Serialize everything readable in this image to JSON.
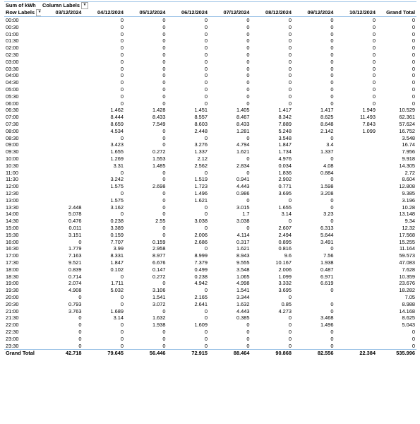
{
  "pivot": {
    "value_field": "Sum of kWh",
    "column_labels": "Column Labels",
    "row_labels": "Row Labels",
    "dropdown_glyph": "▾",
    "columns": [
      "03/12/2024",
      "04/12/2024",
      "05/12/2024",
      "06/12/2024",
      "07/12/2024",
      "08/12/2024",
      "09/12/2024",
      "10/12/2024",
      "Grand Total"
    ],
    "rows": [
      [
        "00:00",
        "",
        "0",
        "0",
        "0",
        "0",
        "0",
        "0",
        "0",
        "0"
      ],
      [
        "00:30",
        "",
        "0",
        "0",
        "0",
        "0",
        "0",
        "0",
        "0",
        "0"
      ],
      [
        "01:00",
        "",
        "0",
        "0",
        "0",
        "0",
        "0",
        "0",
        "0",
        "0"
      ],
      [
        "01:30",
        "",
        "0",
        "0",
        "0",
        "0",
        "0",
        "0",
        "0",
        "0"
      ],
      [
        "02:00",
        "",
        "0",
        "0",
        "0",
        "0",
        "0",
        "0",
        "0",
        "0"
      ],
      [
        "02:30",
        "",
        "0",
        "0",
        "0",
        "0",
        "0",
        "0",
        "0",
        "0"
      ],
      [
        "03:00",
        "",
        "0",
        "0",
        "0",
        "0",
        "0",
        "0",
        "0",
        "0"
      ],
      [
        "03:30",
        "",
        "0",
        "0",
        "0",
        "0",
        "0",
        "0",
        "0",
        "0"
      ],
      [
        "04:00",
        "",
        "0",
        "0",
        "0",
        "0",
        "0",
        "0",
        "0",
        "0"
      ],
      [
        "04:30",
        "",
        "0",
        "0",
        "0",
        "0",
        "0",
        "0",
        "0",
        "0"
      ],
      [
        "05:00",
        "",
        "0",
        "0",
        "0",
        "0",
        "0",
        "0",
        "0",
        "0"
      ],
      [
        "05:30",
        "",
        "0",
        "0",
        "0",
        "0",
        "0",
        "0",
        "0",
        "0"
      ],
      [
        "06:00",
        "",
        "0",
        "0",
        "0",
        "0",
        "0",
        "0",
        "0",
        "0"
      ],
      [
        "06:30",
        "",
        "1.462",
        "1.428",
        "1.451",
        "1.405",
        "1.417",
        "1.417",
        "1.949",
        "10.529"
      ],
      [
        "07:00",
        "",
        "8.444",
        "8.433",
        "8.557",
        "8.467",
        "8.342",
        "8.625",
        "11.493",
        "62.361"
      ],
      [
        "07:30",
        "",
        "8.659",
        "7.549",
        "8.603",
        "8.433",
        "7.889",
        "8.648",
        "7.843",
        "57.624"
      ],
      [
        "08:00",
        "",
        "4.534",
        "0",
        "2.448",
        "1.281",
        "5.248",
        "2.142",
        "1.099",
        "16.752"
      ],
      [
        "08:30",
        "",
        "0",
        "0",
        "0",
        "0",
        "3.548",
        "0",
        "",
        "3.548"
      ],
      [
        "09:00",
        "",
        "3.423",
        "0",
        "3.276",
        "4.794",
        "1.847",
        "3.4",
        "",
        "16.74"
      ],
      [
        "09:30",
        "",
        "1.655",
        "0.272",
        "1.337",
        "1.621",
        "1.734",
        "1.337",
        "",
        "7.956"
      ],
      [
        "10:00",
        "",
        "1.269",
        "1.553",
        "2.12",
        "0",
        "4.976",
        "0",
        "",
        "9.918"
      ],
      [
        "10:30",
        "",
        "3.31",
        "1.485",
        "2.562",
        "2.834",
        "0.034",
        "4.08",
        "",
        "14.305"
      ],
      [
        "11:00",
        "",
        "0",
        "0",
        "0",
        "0",
        "1.836",
        "0.884",
        "",
        "2.72"
      ],
      [
        "11:30",
        "",
        "3.242",
        "0",
        "1.519",
        "0.941",
        "2.902",
        "0",
        "",
        "8.604"
      ],
      [
        "12:00",
        "",
        "1.575",
        "2.698",
        "1.723",
        "4.443",
        "0.771",
        "1.598",
        "",
        "12.808"
      ],
      [
        "12:30",
        "",
        "0",
        "0",
        "1.496",
        "0.986",
        "3.695",
        "3.208",
        "",
        "9.385"
      ],
      [
        "13:00",
        "",
        "1.575",
        "0",
        "1.621",
        "0",
        "0",
        "0",
        "",
        "3.196"
      ],
      [
        "13:30",
        "2.448",
        "3.162",
        "0",
        "0",
        "3.015",
        "1.655",
        "0",
        "",
        "10.28"
      ],
      [
        "14:00",
        "5.078",
        "0",
        "0",
        "0",
        "1.7",
        "3.14",
        "3.23",
        "",
        "13.148"
      ],
      [
        "14:30",
        "0.476",
        "0.238",
        "2.55",
        "3.038",
        "3.038",
        "0",
        "0",
        "",
        "9.34"
      ],
      [
        "15:00",
        "0.011",
        "3.389",
        "0",
        "0",
        "0",
        "2.607",
        "6.313",
        "",
        "12.32"
      ],
      [
        "15:30",
        "3.151",
        "0.159",
        "0",
        "2.006",
        "4.114",
        "2.494",
        "5.644",
        "",
        "17.568"
      ],
      [
        "16:00",
        "0",
        "7.707",
        "0.159",
        "2.686",
        "0.317",
        "0.895",
        "3.491",
        "",
        "15.255"
      ],
      [
        "16:30",
        "1.779",
        "3.99",
        "2.958",
        "0",
        "1.621",
        "0.816",
        "0",
        "",
        "11.164"
      ],
      [
        "17:00",
        "7.163",
        "8.331",
        "8.977",
        "8.999",
        "8.943",
        "9.6",
        "7.56",
        "",
        "59.573"
      ],
      [
        "17:30",
        "9.521",
        "1.847",
        "6.676",
        "7.379",
        "9.555",
        "10.167",
        "1.938",
        "",
        "47.083"
      ],
      [
        "18:00",
        "0.839",
        "0.102",
        "0.147",
        "0.499",
        "3.548",
        "2.006",
        "0.487",
        "",
        "7.628"
      ],
      [
        "18:30",
        "0.714",
        "0",
        "0.272",
        "0.238",
        "1.065",
        "1.099",
        "6.971",
        "",
        "10.359"
      ],
      [
        "19:00",
        "2.074",
        "1.711",
        "0",
        "4.942",
        "4.998",
        "3.332",
        "6.619",
        "",
        "23.676"
      ],
      [
        "19:30",
        "4.908",
        "5.032",
        "3.106",
        "0",
        "1.541",
        "3.695",
        "0",
        "",
        "18.282"
      ],
      [
        "20:00",
        "0",
        "0",
        "1.541",
        "2.165",
        "3.344",
        "0",
        "",
        "",
        "7.05"
      ],
      [
        "20:30",
        "0.793",
        "0",
        "3.072",
        "2.641",
        "1.632",
        "0.85",
        "0",
        "",
        "8.988"
      ],
      [
        "21:00",
        "3.763",
        "1.689",
        "0",
        "0",
        "4.443",
        "4.273",
        "0",
        "",
        "14.168"
      ],
      [
        "21:30",
        "0",
        "3.14",
        "1.632",
        "0",
        "0.385",
        "0",
        "3.468",
        "",
        "8.625"
      ],
      [
        "22:00",
        "0",
        "0",
        "1.938",
        "1.609",
        "0",
        "0",
        "1.496",
        "",
        "5.043"
      ],
      [
        "22:30",
        "0",
        "0",
        "0",
        "0",
        "0",
        "0",
        "0",
        "",
        "0"
      ],
      [
        "23:00",
        "0",
        "0",
        "0",
        "0",
        "0",
        "0",
        "0",
        "",
        "0"
      ],
      [
        "23:30",
        "0",
        "0",
        "0",
        "0",
        "0",
        "0",
        "0",
        "",
        "0"
      ]
    ],
    "grand_total": [
      "Grand Total",
      "42.718",
      "79.645",
      "56.446",
      "72.915",
      "88.464",
      "90.868",
      "82.556",
      "22.384",
      "535.996"
    ]
  }
}
